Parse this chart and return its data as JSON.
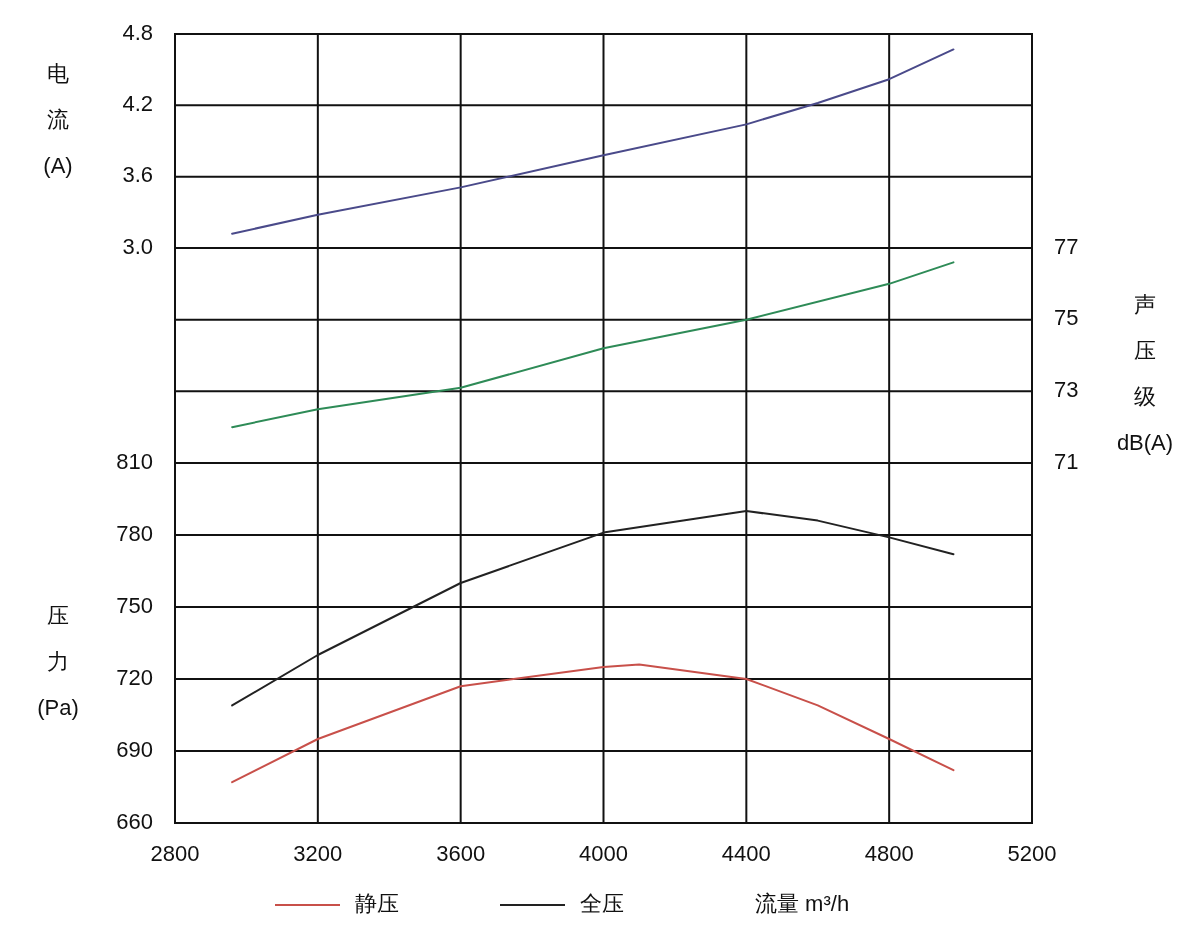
{
  "chart_data": [
    {
      "type": "line",
      "ylabel": "电流(A)",
      "xlim": [
        2800,
        5200
      ],
      "xticks": [
        2800,
        3200,
        3600,
        4000,
        4400,
        4800,
        5200
      ],
      "ylim": [
        3.0,
        4.8
      ],
      "yticks": [
        {
          "value": 3.0,
          "label": "3.0"
        },
        3.6,
        4.2,
        4.8
      ],
      "grid": true,
      "tick_labels": "y",
      "series": [
        {
          "color": "#4a4a8a",
          "x": [
            2960,
            3200,
            3600,
            4000,
            4400,
            4600,
            4800,
            4980
          ],
          "values": [
            3.12,
            3.28,
            3.51,
            3.78,
            4.04,
            4.22,
            4.42,
            4.67
          ]
        }
      ]
    },
    {
      "type": "line",
      "y2label": "声压级dB(A)",
      "xlim": [
        2800,
        5200
      ],
      "xticks": [
        2800,
        3200,
        3600,
        4000,
        4400,
        4800,
        5200
      ],
      "y2lim": [
        71,
        77
      ],
      "y2ticks": [
        71,
        73,
        75,
        77
      ],
      "grid": true,
      "tick_labels": "y",
      "series": [
        {
          "color": "#2e8b57",
          "axis": "y2",
          "x": [
            2960,
            3200,
            3600,
            4000,
            4400,
            4800,
            4980
          ],
          "values": [
            72.0,
            72.5,
            73.1,
            74.2,
            75.0,
            76.0,
            76.6
          ]
        }
      ]
    },
    {
      "type": "line",
      "ylabel": "压力(Pa)",
      "xlabel": "流量 m³/h",
      "xlim": [
        2800,
        5200
      ],
      "xticks": [
        2800,
        3200,
        3600,
        4000,
        4400,
        4800,
        5200
      ],
      "ylim": [
        660,
        810
      ],
      "yticks": [
        660,
        690,
        720,
        750,
        780,
        810
      ],
      "grid": true,
      "legend": "bottom",
      "series": [
        {
          "name": "静压",
          "color": "#c8504a",
          "x": [
            2960,
            3200,
            3600,
            4000,
            4100,
            4400,
            4600,
            4800,
            4980
          ],
          "values": [
            677,
            695,
            717,
            725,
            726,
            720,
            709,
            695,
            682
          ]
        },
        {
          "name": "全压",
          "color": "#222222",
          "x": [
            2960,
            3200,
            3600,
            4000,
            4400,
            4600,
            4800,
            4980
          ],
          "values": [
            709,
            730,
            760,
            781,
            790,
            786,
            779,
            772
          ]
        }
      ]
    }
  ]
}
